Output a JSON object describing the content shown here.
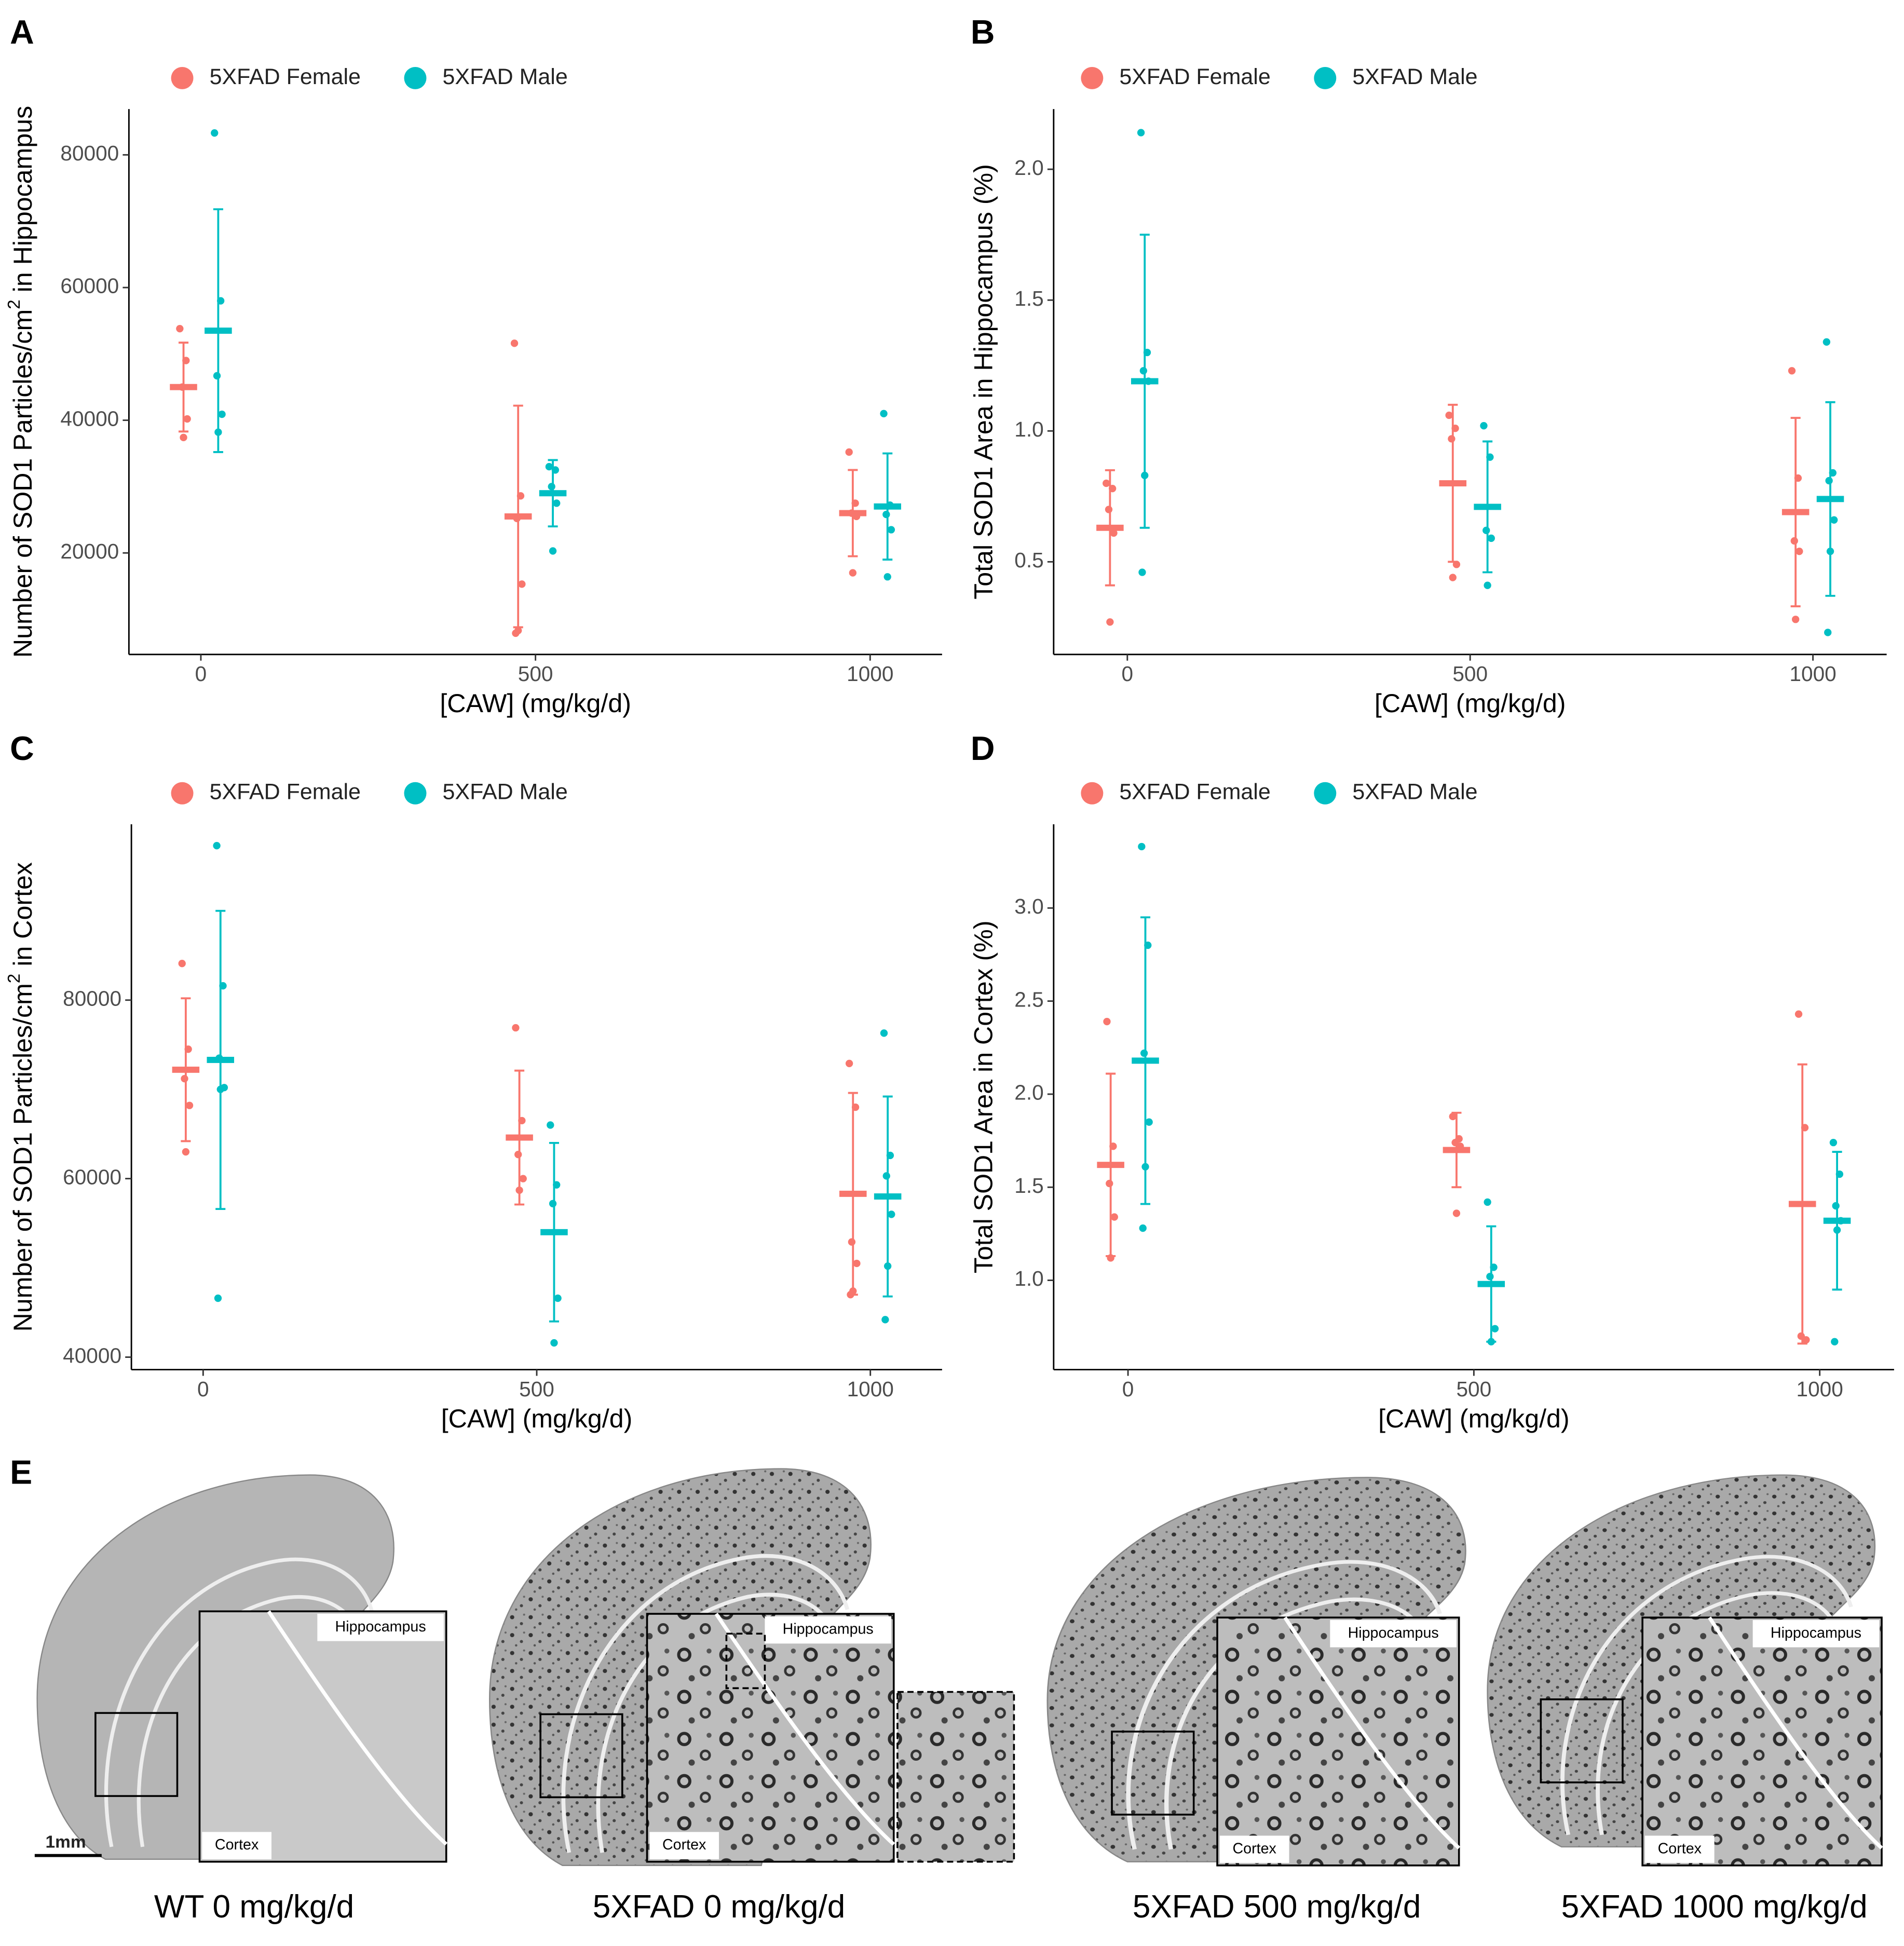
{
  "chart_data": [
    {
      "type": "dot",
      "panel": "A",
      "ylabel": [
        "Number of SOD1 Particles/cm",
        "2",
        " in Hippocampus"
      ],
      "xlabel": "[CAW] (mg/kg/d)",
      "categories": [
        "0",
        "500",
        "1000"
      ],
      "ylim": [
        4700,
        86900
      ],
      "yticks": [
        20000,
        40000,
        60000,
        80000
      ],
      "series": [
        {
          "name": "5XFAD Female",
          "color": "#f8766d",
          "values": [
            45000,
            25500,
            26000
          ],
          "errors": [
            6700,
            16700,
            6500
          ],
          "points": [
            [
              53800,
              49000,
              45000,
              40200,
              37400
            ],
            [
              51600,
              28600,
              25200,
              15300,
              8300,
              7900
            ],
            [
              35200,
              27500,
              26000,
              25500,
              17000
            ]
          ]
        },
        {
          "name": "5XFAD Male",
          "color": "#00bfc4",
          "values": [
            53500,
            29000,
            27000
          ],
          "errors": [
            18300,
            5000,
            8000
          ],
          "points": [
            [
              83300,
              58000,
              46700,
              40900,
              38200
            ],
            [
              33000,
              32500,
              30000,
              27500,
              20300
            ],
            [
              41000,
              27200,
              25800,
              23500,
              16400
            ]
          ]
        }
      ]
    },
    {
      "type": "dot",
      "panel": "B",
      "ylabel": [
        "Total SOD1 Area in Hippocampus (%)"
      ],
      "xlabel": "[CAW] (mg/kg/d)",
      "categories": [
        "0",
        "500",
        "1000"
      ],
      "ylim": [
        0.146,
        2.23
      ],
      "yticks": [
        0.5,
        {
          "value": 1,
          "label": "1.0"
        },
        1.5,
        {
          "value": 2,
          "label": "2.0"
        }
      ],
      "series": [
        {
          "name": "5XFAD Female",
          "color": "#f8766d",
          "values": [
            0.63,
            0.8,
            0.69
          ],
          "errors": [
            0.22,
            0.3,
            0.36
          ],
          "points": [
            [
              0.8,
              0.78,
              0.7,
              0.61,
              0.27
            ],
            [
              1.06,
              1.01,
              0.97,
              0.49,
              0.44
            ],
            [
              1.23,
              0.82,
              0.58,
              0.54,
              0.28
            ]
          ]
        },
        {
          "name": "5XFAD Male",
          "color": "#00bfc4",
          "values": [
            1.19,
            0.71,
            0.74
          ],
          "errors": [
            0.56,
            0.25,
            0.37
          ],
          "points": [
            [
              2.14,
              1.3,
              1.23,
              1.19,
              0.83,
              0.46
            ],
            [
              1.02,
              0.9,
              0.62,
              0.59,
              0.41
            ],
            [
              1.34,
              0.84,
              0.81,
              0.66,
              0.54,
              0.23
            ]
          ]
        }
      ]
    },
    {
      "type": "dot",
      "panel": "C",
      "ylabel": [
        "Number of SOD1 Particles/cm",
        "2",
        " in Cortex"
      ],
      "xlabel": "[CAW] (mg/kg/d)",
      "categories": [
        "0",
        "500",
        "1000"
      ],
      "ylim": [
        38600,
        99700
      ],
      "yticks": [
        40000,
        60000,
        80000
      ],
      "series": [
        {
          "name": "5XFAD Female",
          "color": "#f8766d",
          "values": [
            72200,
            64600,
            58300
          ],
          "errors": [
            8000,
            7500,
            11300
          ],
          "points": [
            [
              84100,
              74500,
              71200,
              68200,
              63000
            ],
            [
              76900,
              66500,
              62700,
              60000,
              58700
            ],
            [
              72900,
              68000,
              52900,
              50500,
              47400,
              47000
            ]
          ]
        },
        {
          "name": "5XFAD Male",
          "color": "#00bfc4",
          "values": [
            73300,
            54000,
            58000
          ],
          "errors": [
            16700,
            10000,
            11200
          ],
          "points": [
            [
              97300,
              81600,
              73500,
              70200,
              70000,
              46600
            ],
            [
              66000,
              59300,
              57200,
              46600,
              41600
            ],
            [
              76300,
              62600,
              60300,
              56000,
              50200,
              44200
            ]
          ]
        }
      ]
    },
    {
      "type": "dot",
      "panel": "D",
      "ylabel": [
        "Total SOD1 Area in Cortex (%)"
      ],
      "xlabel": "[CAW] (mg/kg/d)",
      "categories": [
        "0",
        "500",
        "1000"
      ],
      "ylim": [
        0.52,
        3.45
      ],
      "yticks": [
        {
          "value": 1,
          "label": "1.0"
        },
        1.5,
        {
          "value": 2,
          "label": "2.0"
        },
        2.5,
        {
          "value": 3,
          "label": "3.0"
        }
      ],
      "series": [
        {
          "name": "5XFAD Female",
          "color": "#f8766d",
          "values": [
            1.62,
            1.7,
            1.41
          ],
          "errors": [
            0.49,
            0.2,
            0.75
          ],
          "points": [
            [
              2.39,
              1.72,
              1.52,
              1.34,
              1.12
            ],
            [
              1.88,
              1.76,
              1.74,
              1.72,
              1.36
            ],
            [
              2.43,
              1.82,
              0.7,
              0.68
            ]
          ]
        },
        {
          "name": "5XFAD Male",
          "color": "#00bfc4",
          "values": [
            2.18,
            0.98,
            1.32
          ],
          "errors": [
            0.77,
            0.31,
            0.37
          ],
          "points": [
            [
              3.33,
              2.8,
              2.22,
              1.85,
              1.61,
              1.28
            ],
            [
              1.42,
              1.07,
              1.02,
              0.74,
              0.67
            ],
            [
              1.74,
              1.57,
              1.4,
              1.32,
              1.27,
              0.67
            ]
          ]
        }
      ]
    }
  ],
  "panel_e": {
    "label": "E",
    "scale_bar": "1mm",
    "images": [
      {
        "caption": "WT 0 mg/kg/d",
        "insets": [
          "Hippocampus",
          "Cortex"
        ]
      },
      {
        "caption": "5XFAD 0 mg/kg/d",
        "insets": [
          "Hippocampus",
          "Cortex"
        ]
      },
      {
        "caption": "5XFAD 500 mg/kg/d",
        "insets": [
          "Hippocampus",
          "Cortex"
        ]
      },
      {
        "caption": "5XFAD 1000 mg/kg/d",
        "insets": [
          "Hippocampus",
          "Cortex"
        ]
      }
    ]
  }
}
